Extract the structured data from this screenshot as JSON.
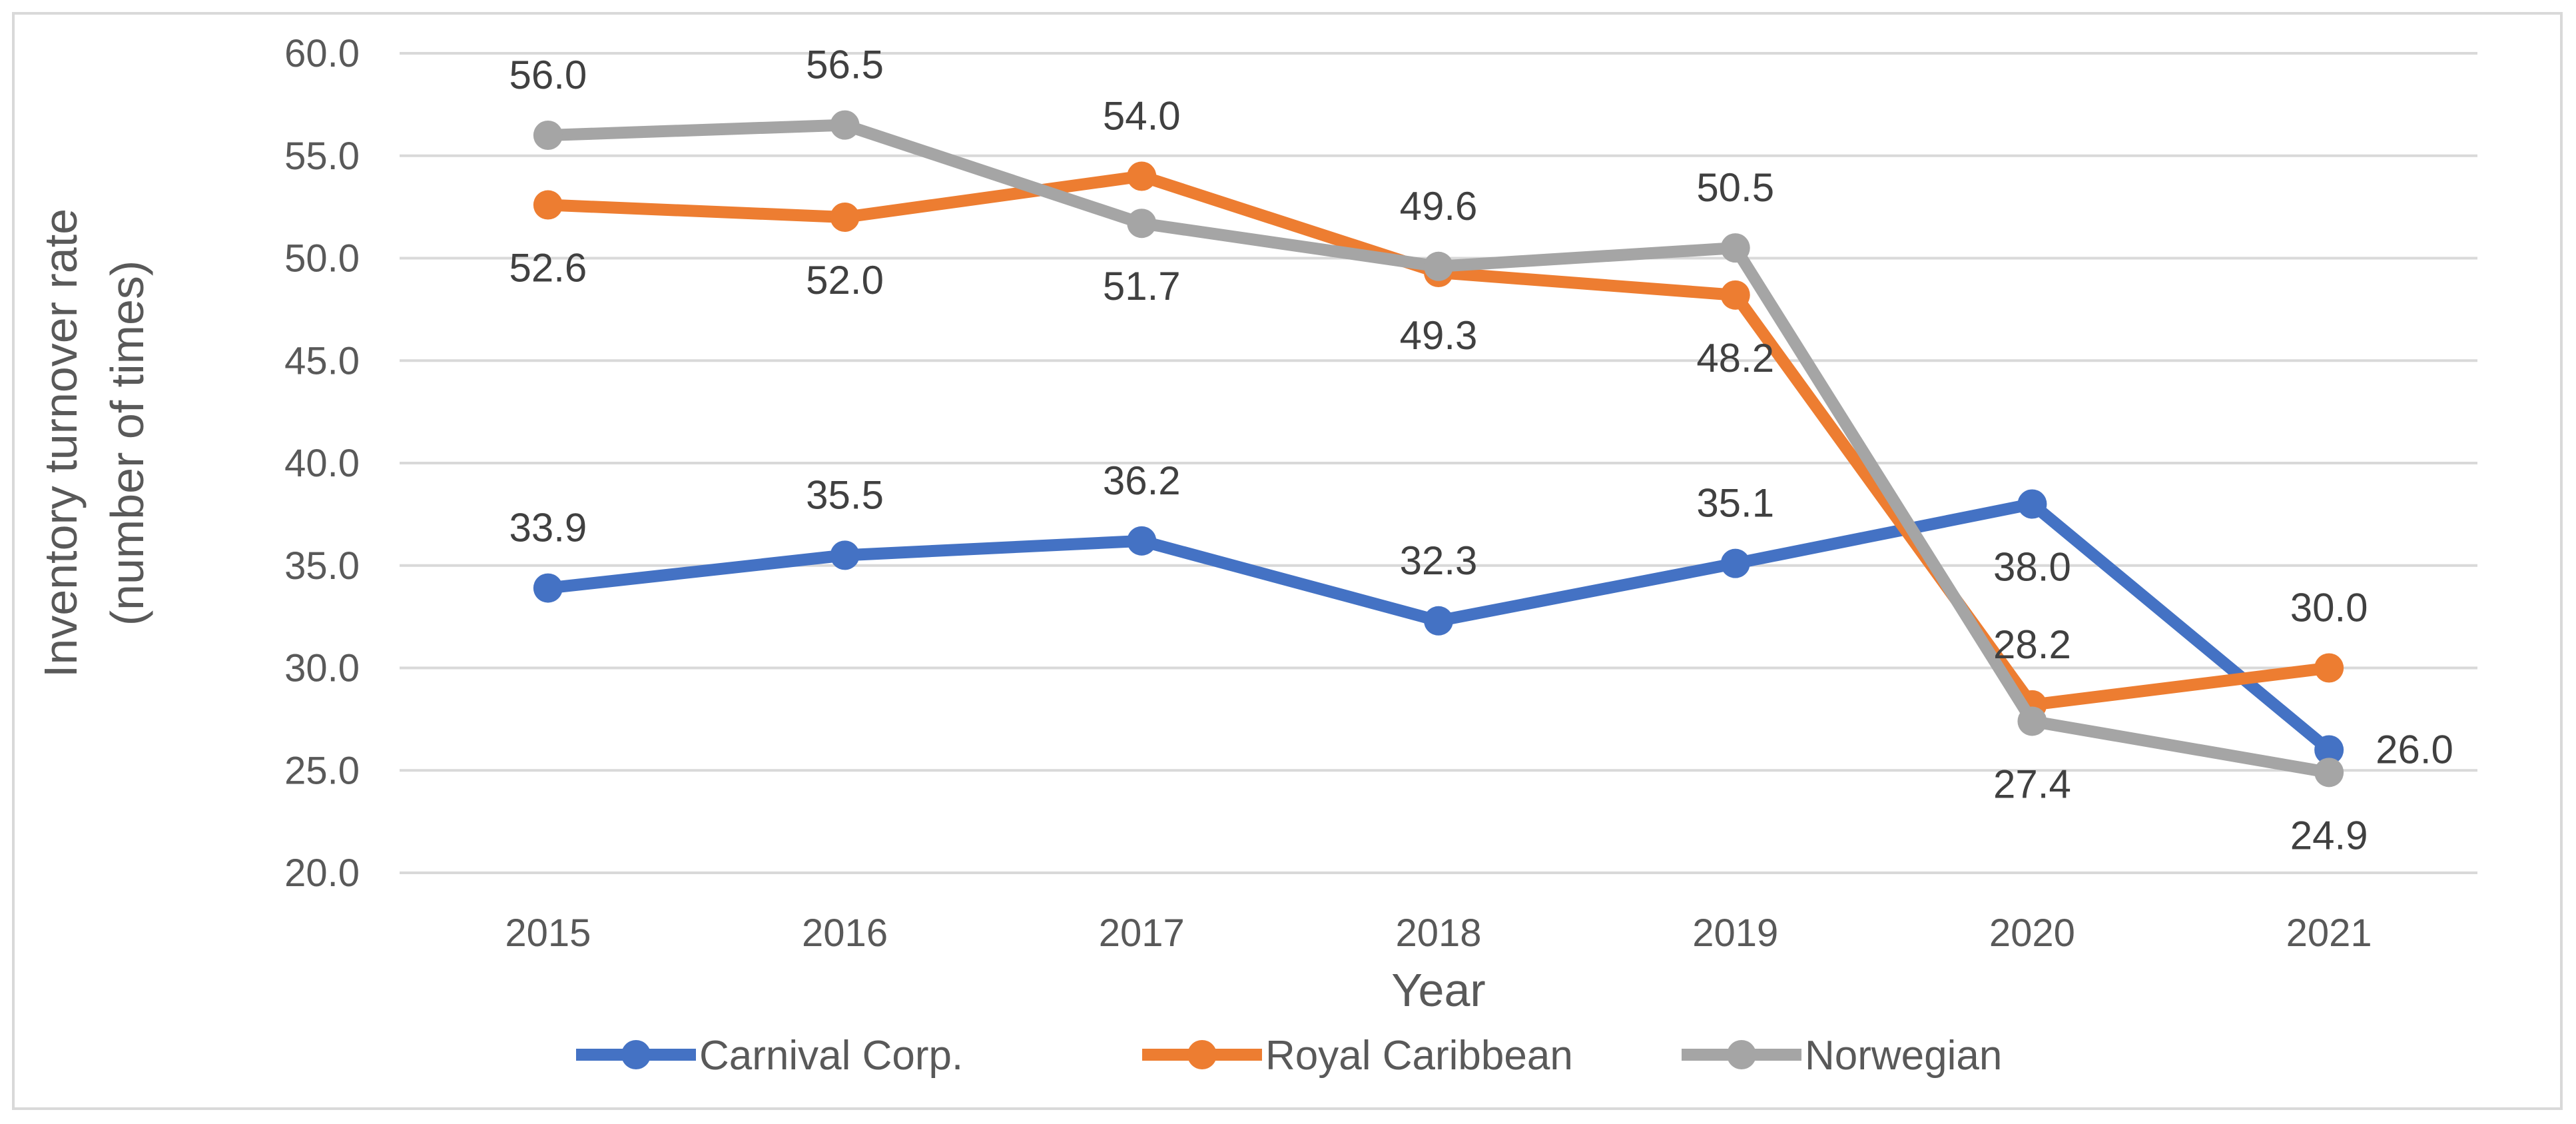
{
  "chart_data": {
    "type": "line",
    "title": "",
    "xlabel": "Year",
    "ylabel_lines": [
      "Inventory turnover rate",
      "(number of times)"
    ],
    "categories": [
      "2015",
      "2016",
      "2017",
      "2018",
      "2019",
      "2020",
      "2021"
    ],
    "ylim": [
      20.0,
      60.0
    ],
    "yticks": [
      20.0,
      25.0,
      30.0,
      35.0,
      40.0,
      45.0,
      50.0,
      55.0,
      60.0
    ],
    "ytick_labels": [
      "20.0",
      "25.0",
      "30.0",
      "35.0",
      "40.0",
      "45.0",
      "50.0",
      "55.0",
      "60.0"
    ],
    "grid": true,
    "legend_position": "bottom",
    "series": [
      {
        "name": "Carnival Corp.",
        "color": "#4472c4",
        "values": [
          33.9,
          35.5,
          36.2,
          32.3,
          35.1,
          38.0,
          26.0
        ],
        "labels": [
          "33.9",
          "35.5",
          "36.2",
          "32.3",
          "35.1",
          "38.0",
          "26.0"
        ],
        "label_positions": [
          "above",
          "above",
          "above",
          "above",
          "above",
          "below",
          "right"
        ]
      },
      {
        "name": "Royal Caribbean",
        "color": "#ed7d31",
        "values": [
          52.6,
          52.0,
          54.0,
          49.3,
          48.2,
          28.2,
          30.0
        ],
        "labels": [
          "52.6",
          "52.0",
          "54.0",
          "49.3",
          "48.2",
          "28.2",
          "30.0"
        ],
        "label_positions": [
          "below",
          "below",
          "above",
          "below",
          "below",
          "above",
          "above"
        ]
      },
      {
        "name": "Norwegian",
        "color": "#a5a5a5",
        "values": [
          56.0,
          56.5,
          51.7,
          49.6,
          50.5,
          27.4,
          24.9
        ],
        "labels": [
          "56.0",
          "56.5",
          "51.7",
          "49.6",
          "50.5",
          "27.4",
          "24.9"
        ],
        "label_positions": [
          "above",
          "above",
          "below",
          "above",
          "above",
          "below",
          "below"
        ]
      }
    ]
  }
}
